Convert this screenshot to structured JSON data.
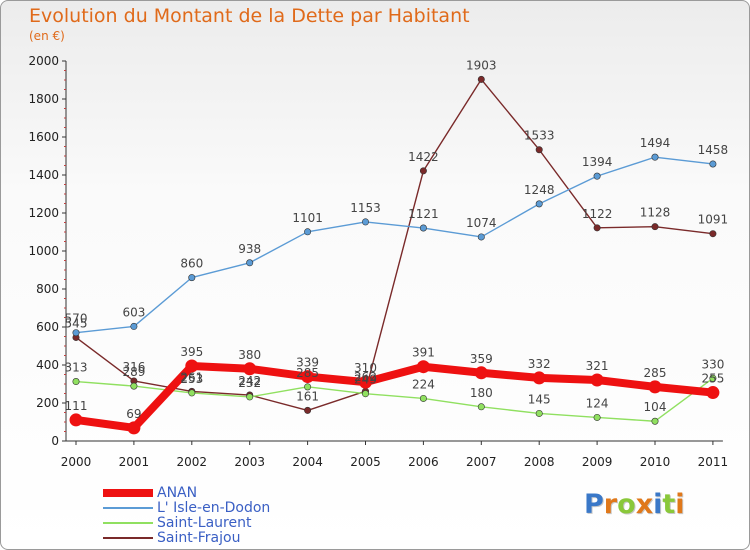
{
  "chart_data": {
    "type": "line",
    "title": "Evolution du Montant de la Dette par Habitant",
    "subtitle": "(en €)",
    "categories": [
      "2000",
      "2001",
      "2002",
      "2003",
      "2004",
      "2005",
      "2006",
      "2007",
      "2008",
      "2009",
      "2010",
      "2011"
    ],
    "ylim": [
      0,
      2000
    ],
    "y_ticks": [
      0,
      200,
      400,
      600,
      800,
      1000,
      1200,
      1400,
      1600,
      1800,
      2000
    ],
    "grid": false,
    "legend_position": "bottom-left",
    "series": [
      {
        "name": "ANAN",
        "color": "#ee1111",
        "values": [
          111,
          69,
          395,
          380,
          339,
          310,
          391,
          359,
          332,
          321,
          285,
          255
        ]
      },
      {
        "name": "L' Isle-en-Dodon",
        "color": "#5b9bd5",
        "values": [
          570,
          603,
          860,
          938,
          1101,
          1153,
          1121,
          1074,
          1248,
          1394,
          1494,
          1458
        ]
      },
      {
        "name": "Saint-Laurent",
        "color": "#90e060",
        "values": [
          313,
          289,
          253,
          232,
          285,
          249,
          224,
          180,
          145,
          124,
          104,
          330
        ]
      },
      {
        "name": "Saint-Frajou",
        "color": "#7a2a2a",
        "values": [
          545,
          316,
          261,
          242,
          161,
          262,
          1422,
          1903,
          1533,
          1122,
          1128,
          1091
        ]
      }
    ]
  },
  "logo": {
    "letters": [
      "P",
      "r",
      "o",
      "x",
      "i",
      "t",
      "i"
    ],
    "colors": [
      "#3a78c8",
      "#e0781a",
      "#8ac83a",
      "#e0781a",
      "#3a78c8",
      "#8ac83a",
      "#e0781a"
    ]
  }
}
